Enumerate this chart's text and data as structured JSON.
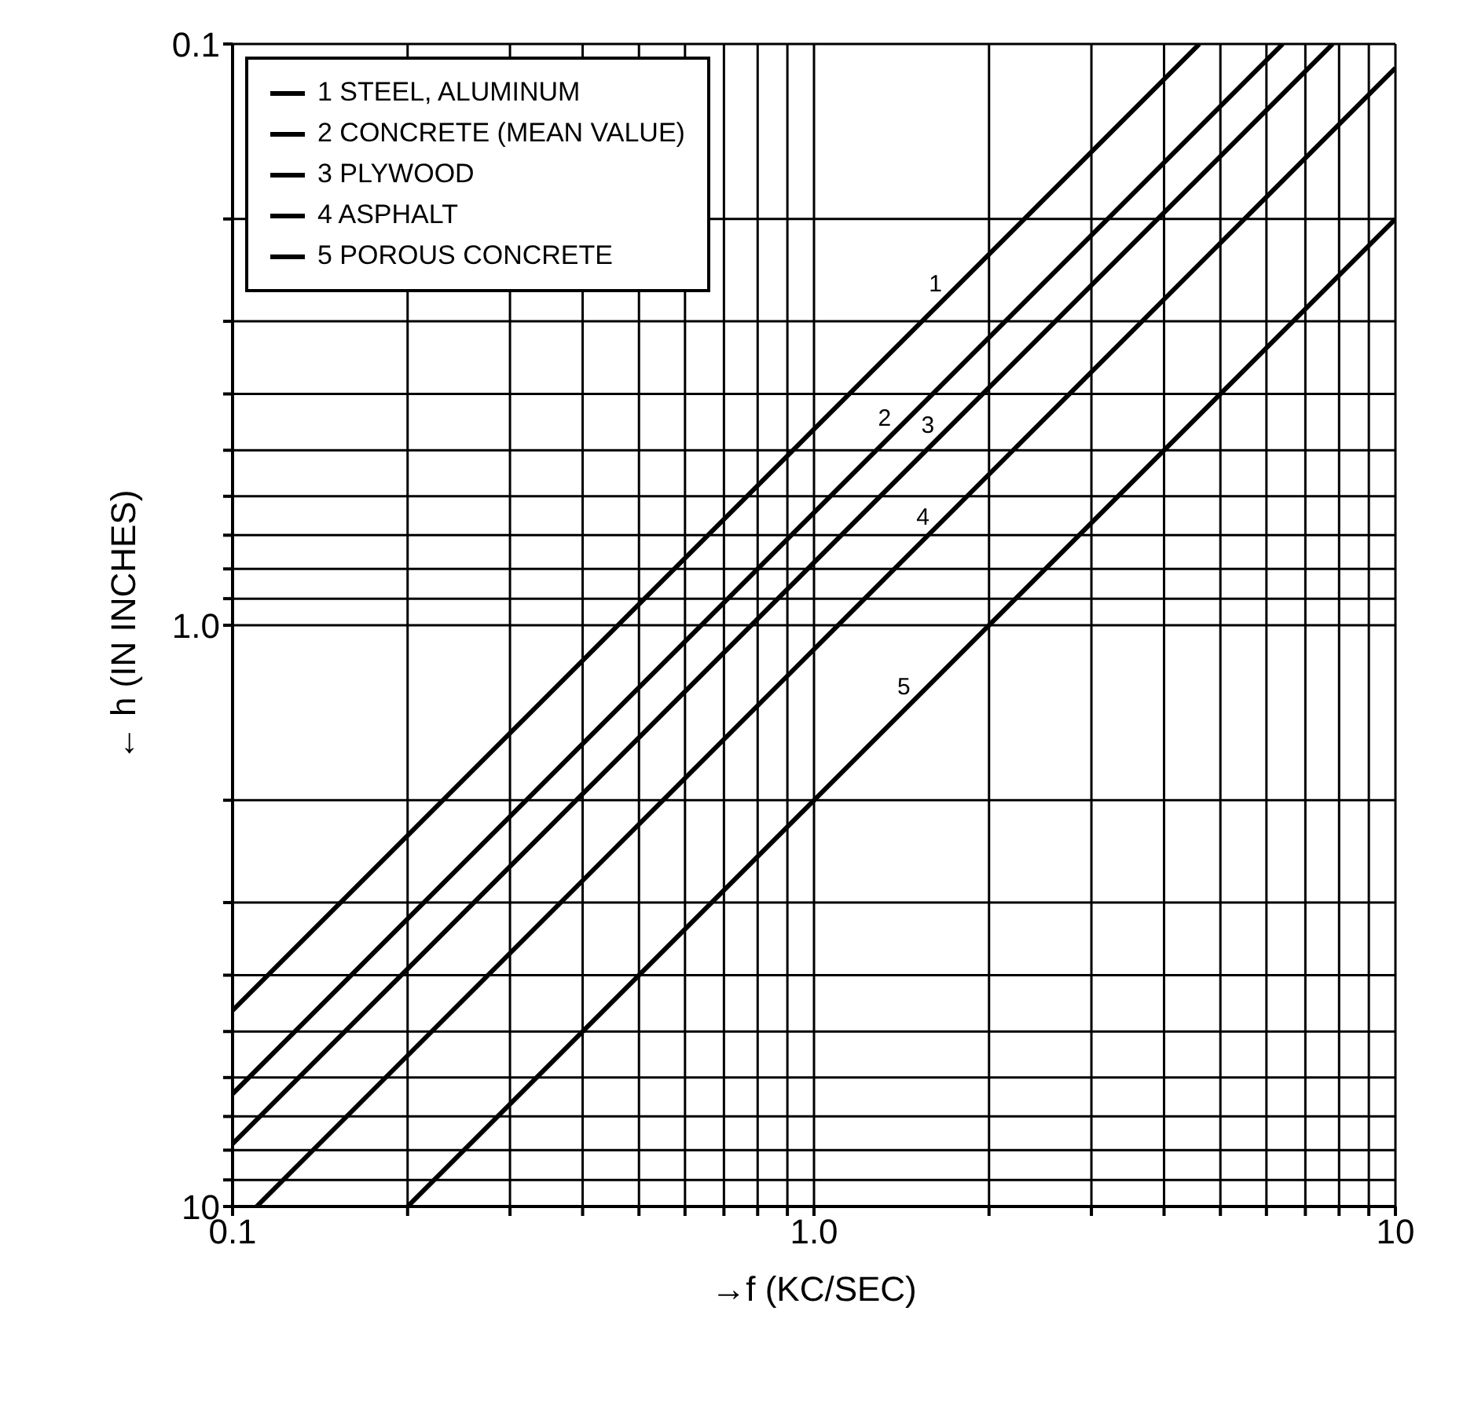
{
  "chart_data": {
    "type": "line",
    "xlabel": "→f  (KC/SEC)",
    "ylabel": "← h  (IN INCHES)",
    "log": "xy",
    "grid": true,
    "legend": "top left",
    "xlim": [
      0.1,
      10
    ],
    "ylim": [
      10,
      0.1
    ],
    "xticks": [
      {
        "value": 0.1,
        "label": "0.1"
      },
      {
        "value": 0.2,
        "label": null
      },
      {
        "value": 0.3,
        "label": null
      },
      {
        "value": 0.4,
        "label": null
      },
      {
        "value": 0.5,
        "label": null
      },
      {
        "value": 0.6,
        "label": null
      },
      {
        "value": 0.7,
        "label": null
      },
      {
        "value": 0.8,
        "label": null
      },
      {
        "value": 0.9,
        "label": null
      },
      {
        "value": 1,
        "label": "1.0"
      },
      {
        "value": 2,
        "label": null
      },
      {
        "value": 3,
        "label": null
      },
      {
        "value": 4,
        "label": null
      },
      {
        "value": 5,
        "label": null
      },
      {
        "value": 6,
        "label": null
      },
      {
        "value": 7,
        "label": null
      },
      {
        "value": 8,
        "label": null
      },
      {
        "value": 9,
        "label": null
      },
      {
        "value": 10,
        "label": "10"
      }
    ],
    "yticks": [
      {
        "value": 0.1,
        "label": "0.1"
      },
      {
        "value": 0.2,
        "label": null
      },
      {
        "value": 0.3,
        "label": null
      },
      {
        "value": 0.4,
        "label": null
      },
      {
        "value": 0.5,
        "label": null
      },
      {
        "value": 0.6,
        "label": null
      },
      {
        "value": 0.7,
        "label": null
      },
      {
        "value": 0.8,
        "label": null
      },
      {
        "value": 0.9,
        "label": null
      },
      {
        "value": 1,
        "label": "1.0"
      },
      {
        "value": 2,
        "label": null
      },
      {
        "value": 3,
        "label": null
      },
      {
        "value": 4,
        "label": null
      },
      {
        "value": 5,
        "label": null
      },
      {
        "value": 6,
        "label": null
      },
      {
        "value": 7,
        "label": null
      },
      {
        "value": 8,
        "label": null
      },
      {
        "value": 9,
        "label": null
      },
      {
        "value": 10,
        "label": "10"
      }
    ],
    "series": [
      {
        "name": "1 STEEL, ALUMINUM",
        "color": "#000000",
        "x": [
          0.1,
          1,
          4.6
        ],
        "values": [
          4.6,
          0.46,
          0.1
        ]
      },
      {
        "name": "2 CONCRETE (MEAN VALUE)",
        "color": "#000000",
        "x": [
          0.1,
          1,
          6.4
        ],
        "values": [
          6.4,
          0.64,
          0.1
        ]
      },
      {
        "name": "3 PLYWOOD",
        "color": "#000000",
        "x": [
          0.1,
          1,
          7.8
        ],
        "values": [
          7.8,
          0.78,
          0.1
        ]
      },
      {
        "name": "4 ASPHALT",
        "color": "#000000",
        "x": [
          0.11,
          1,
          10
        ],
        "values": [
          10,
          1.1,
          0.11
        ]
      },
      {
        "name": "5 POROUS CONCRETE",
        "color": "#000000",
        "x": [
          0.2,
          1,
          10
        ],
        "values": [
          10,
          2,
          0.2
        ]
      }
    ],
    "annotations": [
      {
        "text": "1",
        "x": 1.7,
        "y": 0.27
      },
      {
        "text": "2",
        "x": 1.39,
        "y": 0.46
      },
      {
        "text": "3",
        "x": 1.65,
        "y": 0.473
      },
      {
        "text": "4",
        "x": 1.618,
        "y": 0.68
      },
      {
        "text": "5",
        "x": 1.5,
        "y": 1.333
      }
    ]
  }
}
